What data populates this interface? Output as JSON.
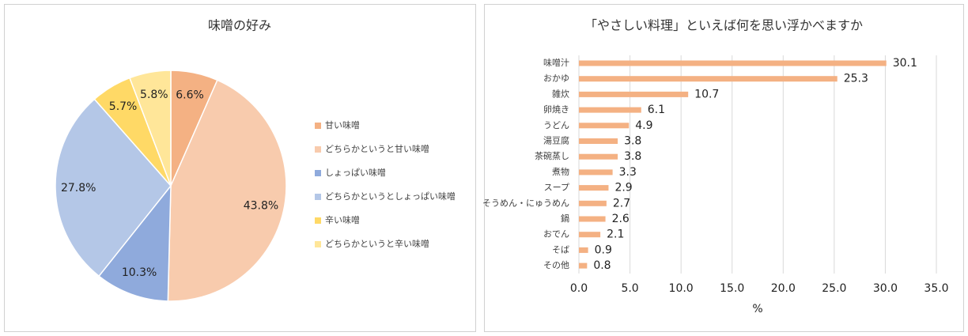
{
  "chart_data": [
    {
      "type": "pie",
      "title": "味噌の好み",
      "categories": [
        "甘い味噌",
        "どちらかというと甘い味噌",
        "しょっぱい味噌",
        "どちらかというとしょっぱい味噌",
        "辛い味噌",
        "どちらかというと辛い味噌"
      ],
      "values": [
        6.6,
        43.8,
        10.3,
        27.8,
        5.7,
        5.8
      ],
      "value_labels": [
        "6.6%",
        "43.8%",
        "10.3%",
        "27.8%",
        "5.7%",
        "5.8%"
      ],
      "colors": [
        "#F4B183",
        "#F8CBAD",
        "#8FAADC",
        "#B4C7E7",
        "#FFD966",
        "#FFE699"
      ],
      "legend": "right"
    },
    {
      "type": "hbar",
      "title": "「やさしい料理」といえば何を思い浮かべますか",
      "categories": [
        "味噌汁",
        "おかゆ",
        "雑炊",
        "卵焼き",
        "うどん",
        "湯豆腐",
        "茶碗蒸し",
        "煮物",
        "スープ",
        "そうめん・にゅうめん",
        "鍋",
        "おでん",
        "そば",
        "その他"
      ],
      "values": [
        30.1,
        25.3,
        10.7,
        6.1,
        4.9,
        3.8,
        3.8,
        3.3,
        2.9,
        2.7,
        2.6,
        2.1,
        0.9,
        0.8
      ],
      "color": "#F4B183",
      "xlabel": "%",
      "xlim": [
        0,
        35
      ],
      "xticks": [
        {
          "value": 0,
          "label": "0.0"
        },
        {
          "value": 5,
          "label": "5.0"
        },
        {
          "value": 10,
          "label": "10.0"
        },
        {
          "value": 15,
          "label": "15.0"
        },
        {
          "value": 20,
          "label": "20.0"
        },
        {
          "value": 25,
          "label": "25.0"
        },
        {
          "value": 30,
          "label": "30.0"
        },
        {
          "value": 35,
          "label": "35.0"
        }
      ],
      "grid": true
    }
  ]
}
